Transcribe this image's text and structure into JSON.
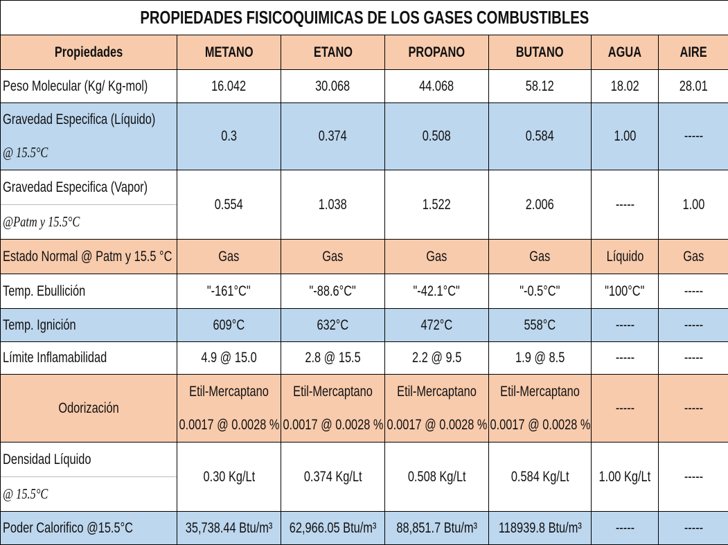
{
  "title": "PROPIEDADES FISICOQUIMICAS DE LOS GASES COMBUSTIBLES",
  "table": {
    "header": [
      "Propiedades",
      "METANO",
      "ETANO",
      "PROPANO",
      "BUTANO",
      "AGUA",
      "AIRE"
    ],
    "rows": [
      {
        "label": [
          "Peso Molecular (Kg/ Kg-mol)"
        ],
        "cells": [
          [
            "16.042"
          ],
          [
            "30.068"
          ],
          [
            "44.068"
          ],
          [
            "58.12"
          ],
          [
            "18.02"
          ],
          [
            "28.01"
          ]
        ]
      },
      {
        "label": [
          "Gravedad Especifica (Líquido)",
          "@ 15.5°C"
        ],
        "cells": [
          [
            "0.3"
          ],
          [
            "0.374"
          ],
          [
            "0.508"
          ],
          [
            "0.584"
          ],
          [
            "1.00"
          ],
          [
            "-----"
          ]
        ]
      },
      {
        "label": [
          "Gravedad Especifica (Vapor)",
          "@Patm y 15.5°C"
        ],
        "cells": [
          [
            "0.554"
          ],
          [
            "1.038"
          ],
          [
            "1.522"
          ],
          [
            "2.006"
          ],
          [
            "-----"
          ],
          [
            "1.00"
          ]
        ]
      },
      {
        "label": [
          "Estado Normal @ Patm y 15.5 °C"
        ],
        "cells": [
          [
            "Gas"
          ],
          [
            "Gas"
          ],
          [
            "Gas"
          ],
          [
            "Gas"
          ],
          [
            "Líquido"
          ],
          [
            "Gas"
          ]
        ]
      },
      {
        "label": [
          "Temp. Ebullición"
        ],
        "cells": [
          [
            "\"-161°C\""
          ],
          [
            "\"-88.6°C\""
          ],
          [
            "\"-42.1°C\""
          ],
          [
            "\"-0.5°C\""
          ],
          [
            "\"100°C\""
          ],
          [
            "-----"
          ]
        ]
      },
      {
        "label": [
          "Temp. Ignición"
        ],
        "cells": [
          [
            "609°C"
          ],
          [
            "632°C"
          ],
          [
            "472°C"
          ],
          [
            "558°C"
          ],
          [
            "-----"
          ],
          [
            "-----"
          ]
        ]
      },
      {
        "label": [
          "Límite Inflamabilidad"
        ],
        "cells": [
          [
            "4.9 @ 15.0"
          ],
          [
            "2.8 @ 15.5"
          ],
          [
            "2.2 @ 9.5"
          ],
          [
            "1.9 @ 8.5"
          ],
          [
            "-----"
          ],
          [
            "-----"
          ]
        ]
      },
      {
        "label": [
          "Odorización"
        ],
        "cells": [
          [
            "Etil-Mercaptano",
            "0.0017 @ 0.0028 %"
          ],
          [
            "Etil-Mercaptano",
            "0.0017 @ 0.0028 %"
          ],
          [
            "Etil-Mercaptano",
            "0.0017 @ 0.0028 %"
          ],
          [
            "Etil-Mercaptano",
            "0.0017 @ 0.0028 %"
          ],
          [
            "-----"
          ],
          [
            "-----"
          ]
        ]
      },
      {
        "label": [
          "Densidad Líquido",
          "@ 15.5°C"
        ],
        "cells": [
          [
            "0.30 Kg/Lt"
          ],
          [
            "0.374 Kg/Lt"
          ],
          [
            "0.508 Kg/Lt"
          ],
          [
            "0.584 Kg/Lt"
          ],
          [
            "1.00 Kg/Lt"
          ],
          [
            "-----"
          ]
        ]
      },
      {
        "label": [
          "Poder Calorifico @15.5°C"
        ],
        "cells": [
          [
            "35,738.44 Btu/m³"
          ],
          [
            "62,966.05 Btu/m³"
          ],
          [
            "88,851.7 Btu/m³"
          ],
          [
            "118939.8 Btu/m³"
          ],
          [
            "-----"
          ],
          [
            "-----"
          ]
        ]
      }
    ]
  }
}
